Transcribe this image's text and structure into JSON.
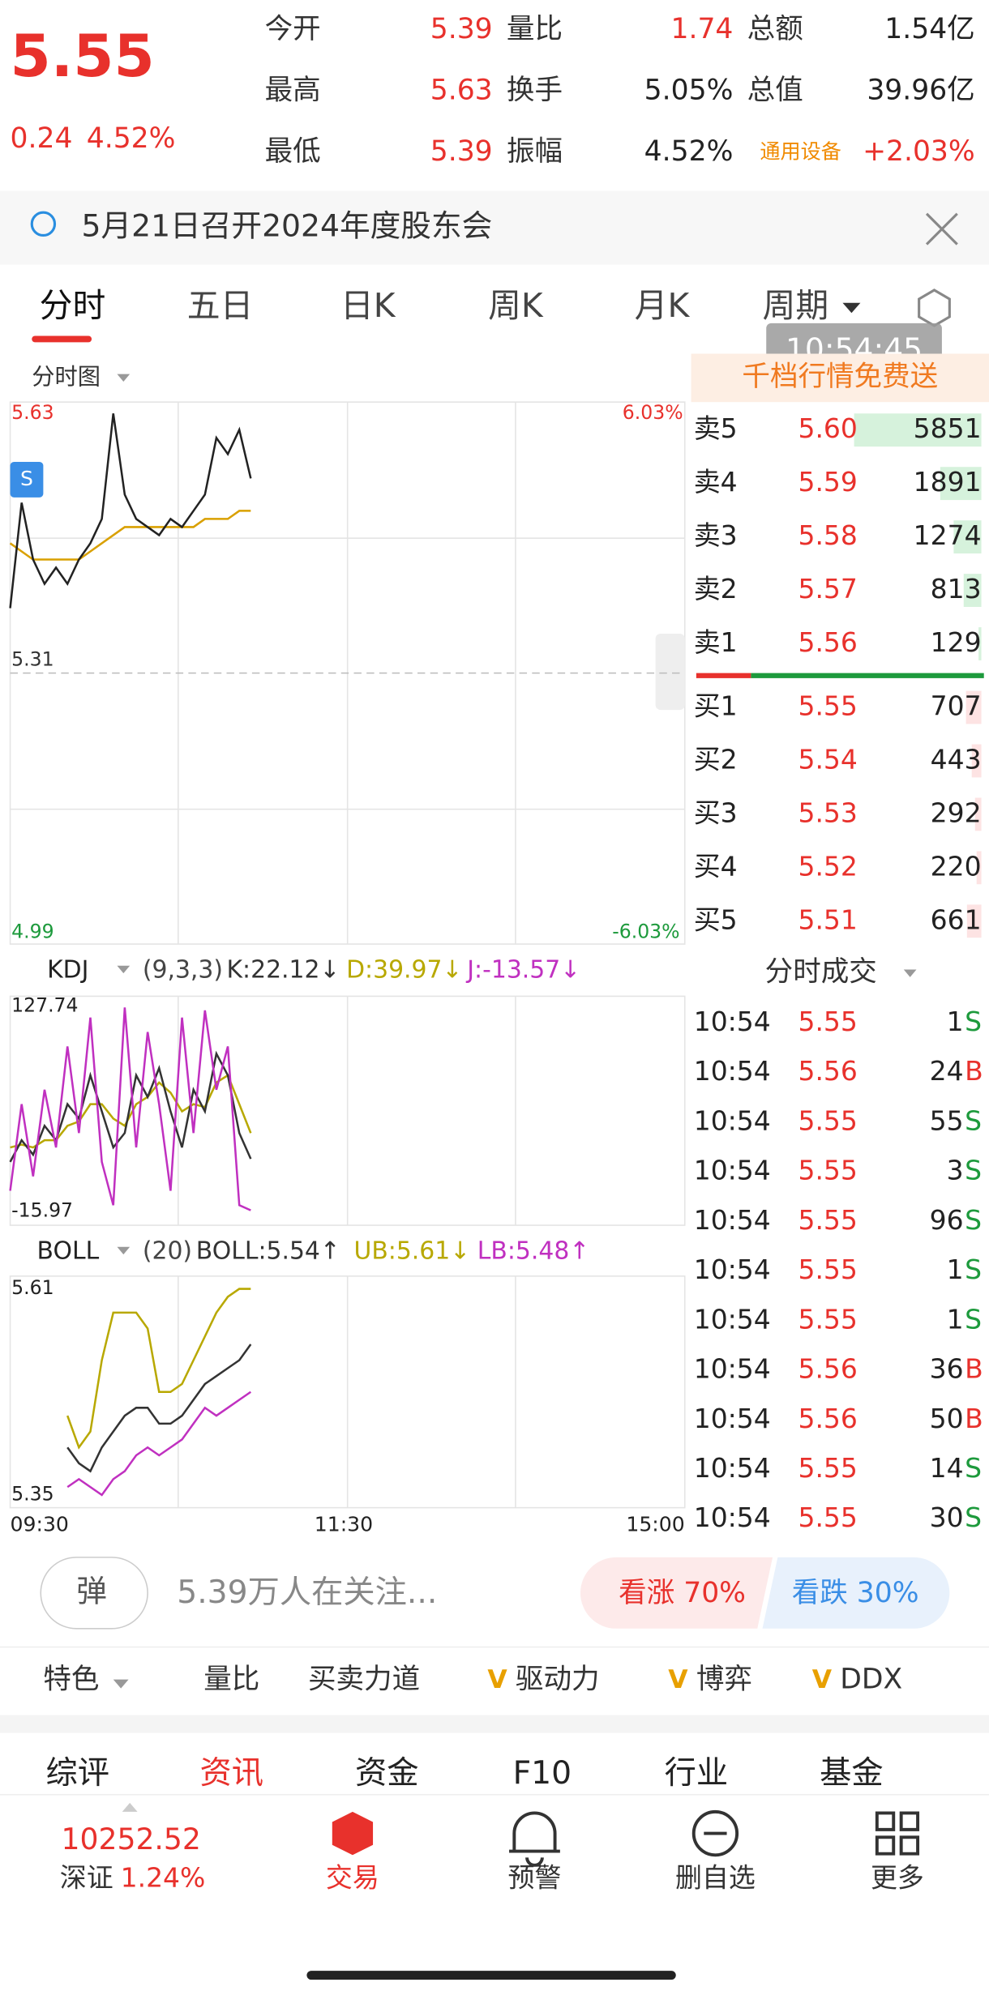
{
  "quote": {
    "price": "5.55",
    "change": "0.24",
    "change_pct": "4.52%",
    "stats": [
      {
        "label": "今开",
        "value": "5.39"
      },
      {
        "label": "量比",
        "value": "1.74"
      },
      {
        "label": "总额",
        "value": "1.54亿"
      },
      {
        "label": "最高",
        "value": "5.63"
      },
      {
        "label": "换手",
        "value": "5.05%"
      },
      {
        "label": "总值",
        "value": "39.96亿"
      },
      {
        "label": "最低",
        "value": "5.39"
      },
      {
        "label": "振幅",
        "value": "4.52%"
      }
    ],
    "sector": "通用设备",
    "sector_change": "+2.03%"
  },
  "notice": "5月21日召开2024年度股东会",
  "tabs": [
    "分时",
    "五日",
    "日K",
    "周K",
    "月K",
    "周期"
  ],
  "time_badge": "10:54:45",
  "chart": {
    "label": "分时图",
    "ylim": [
      4.99,
      5.63
    ],
    "yticks": [
      5.63,
      5.31,
      4.99
    ],
    "pct_top": "6.03%",
    "pct_bottom": "-6.03%",
    "s_marker": "S",
    "price": [
      5.39,
      5.52,
      5.45,
      5.42,
      5.44,
      5.42,
      5.45,
      5.47,
      5.5,
      5.63,
      5.53,
      5.5,
      5.49,
      5.48,
      5.5,
      5.49,
      5.51,
      5.53,
      5.6,
      5.58,
      5.61,
      5.55
    ],
    "avg": [
      5.47,
      5.46,
      5.45,
      5.45,
      5.45,
      5.45,
      5.45,
      5.46,
      5.47,
      5.48,
      5.49,
      5.49,
      5.49,
      5.49,
      5.49,
      5.49,
      5.49,
      5.5,
      5.5,
      5.5,
      5.51,
      5.51
    ],
    "x_labels": [
      "09:30",
      "11:30",
      "15:00"
    ]
  },
  "kdj": {
    "name": "KDJ",
    "params": "(9,3,3)",
    "k_label": "K:22.12↓",
    "d_label": "D:39.97↓",
    "j_label": "J:-13.57↓",
    "ylim": [
      -15.97,
      127.74
    ],
    "yticks": [
      127.74,
      -15.97
    ],
    "k": [
      20,
      35,
      25,
      45,
      35,
      60,
      50,
      80,
      55,
      30,
      40,
      80,
      65,
      85,
      55,
      30,
      70,
      55,
      95,
      80,
      40,
      22.12
    ],
    "d": [
      30,
      32,
      30,
      35,
      35,
      45,
      48,
      60,
      60,
      50,
      45,
      60,
      65,
      75,
      68,
      55,
      60,
      58,
      75,
      80,
      60,
      39.97
    ],
    "j": [
      0,
      60,
      10,
      70,
      30,
      100,
      40,
      120,
      20,
      -10,
      127,
      30,
      110,
      60,
      0,
      120,
      40,
      125,
      70,
      100,
      -10,
      -13.57
    ]
  },
  "boll": {
    "name": "BOLL",
    "params": "(20)",
    "mid_label": "BOLL:5.54↑",
    "ub_label": "UB:5.61↓",
    "lb_label": "LB:5.48↑",
    "ylim": [
      5.35,
      5.61
    ],
    "yticks": [
      5.61,
      5.35
    ],
    "ub": [
      null,
      null,
      null,
      null,
      null,
      5.45,
      5.41,
      5.43,
      5.52,
      5.58,
      5.58,
      5.58,
      5.56,
      5.48,
      5.48,
      5.49,
      5.52,
      5.55,
      5.58,
      5.6,
      5.61,
      5.61
    ],
    "mid": [
      null,
      null,
      null,
      null,
      null,
      5.41,
      5.39,
      5.38,
      5.41,
      5.43,
      5.45,
      5.46,
      5.46,
      5.44,
      5.44,
      5.45,
      5.47,
      5.49,
      5.5,
      5.51,
      5.52,
      5.54
    ],
    "lb": [
      null,
      null,
      null,
      null,
      null,
      5.36,
      5.37,
      5.36,
      5.35,
      5.37,
      5.38,
      5.4,
      5.41,
      5.4,
      5.41,
      5.42,
      5.44,
      5.46,
      5.45,
      5.46,
      5.47,
      5.48
    ]
  },
  "promo": "千档行情免费送",
  "order_book": {
    "asks": [
      {
        "label": "卖5",
        "price": "5.60",
        "volume": 5851
      },
      {
        "label": "卖4",
        "price": "5.59",
        "volume": 1891
      },
      {
        "label": "卖3",
        "price": "5.58",
        "volume": 1274
      },
      {
        "label": "卖2",
        "price": "5.57",
        "volume": 813
      },
      {
        "label": "卖1",
        "price": "5.56",
        "volume": 129
      }
    ],
    "bids": [
      {
        "label": "买1",
        "price": "5.55",
        "volume": 707
      },
      {
        "label": "买2",
        "price": "5.54",
        "volume": 443
      },
      {
        "label": "买3",
        "price": "5.53",
        "volume": 292
      },
      {
        "label": "买4",
        "price": "5.52",
        "volume": 220
      },
      {
        "label": "买5",
        "price": "5.51",
        "volume": 661
      }
    ]
  },
  "trades_title": "分时成交",
  "trades": [
    {
      "time": "10:54",
      "price": "5.55",
      "volume": 1,
      "side": "S"
    },
    {
      "time": "10:54",
      "price": "5.56",
      "volume": 24,
      "side": "B"
    },
    {
      "time": "10:54",
      "price": "5.55",
      "volume": 55,
      "side": "S"
    },
    {
      "time": "10:54",
      "price": "5.55",
      "volume": 3,
      "side": "S"
    },
    {
      "time": "10:54",
      "price": "5.55",
      "volume": 96,
      "side": "S"
    },
    {
      "time": "10:54",
      "price": "5.55",
      "volume": 1,
      "side": "S"
    },
    {
      "time": "10:54",
      "price": "5.55",
      "volume": 1,
      "side": "S"
    },
    {
      "time": "10:54",
      "price": "5.56",
      "volume": 36,
      "side": "B"
    },
    {
      "time": "10:54",
      "price": "5.56",
      "volume": 50,
      "side": "B"
    },
    {
      "time": "10:54",
      "price": "5.55",
      "volume": 14,
      "side": "S"
    },
    {
      "time": "10:54",
      "price": "5.55",
      "volume": 30,
      "side": "S"
    }
  ],
  "danmaku": "弹",
  "followers": "5.39万人在关注...",
  "bullish": "看涨 70%",
  "bearish": "看跌 30%",
  "indicator_tabs": [
    "特色",
    "量比",
    "买卖力道",
    "驱动力",
    "博弈",
    "DDX"
  ],
  "section_tabs": [
    "综评",
    "资讯",
    "资金",
    "F10",
    "行业",
    "基金"
  ],
  "nav": {
    "index_value": "10252.52",
    "index_name": "深证",
    "index_change": "1.24%",
    "items": [
      "交易",
      "预警",
      "删自选",
      "更多"
    ]
  }
}
